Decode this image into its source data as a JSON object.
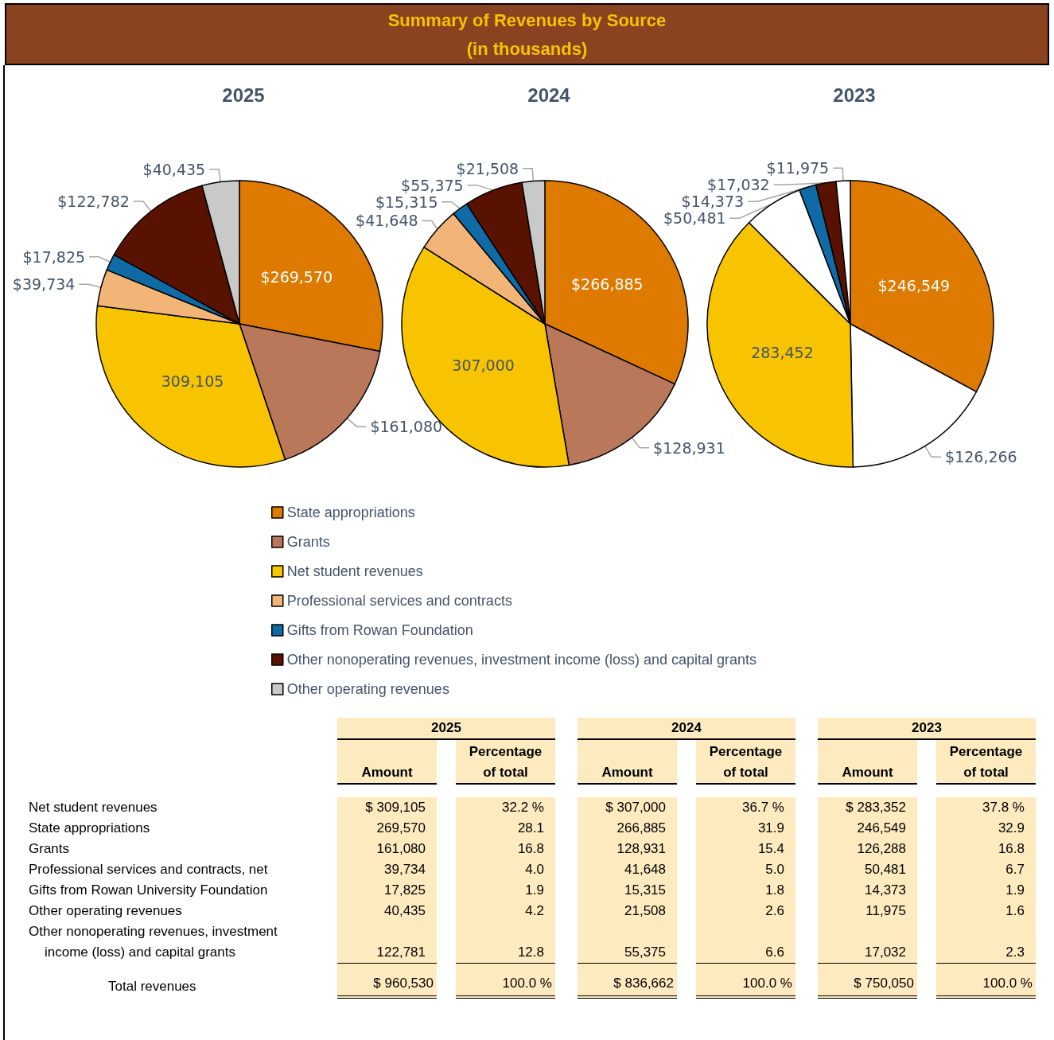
{
  "chart_data": [
    {
      "type": "other",
      "title": "Summary of Revenues by Source",
      "subtitle": "(in thousands)"
    },
    {
      "type": "pie",
      "legend": "bottom",
      "categories": [
        "State appropriations",
        "Grants",
        "Net student revenues",
        "Professional services and contracts",
        "Gifts from Rowan Foundation",
        "Other nonoperating revenues, investment income (loss) and capital grants",
        "Other operating revenues"
      ],
      "series": [
        {
          "name": "2025",
          "values": [
            269570,
            161080,
            309105,
            39734,
            17825,
            122782,
            40435
          ],
          "colors": [
            "#df7a00",
            "#b9785a",
            "#f8c400",
            "#f3b577",
            "#0f6aa5",
            "#5a1200",
            "#c9c9c9"
          ],
          "value_labels": [
            "$269,570",
            "$161,080",
            "309,105",
            "$39,734",
            "$17,825",
            "$122,782",
            "$40,435"
          ]
        },
        {
          "name": "2024",
          "values": [
            266885,
            128931,
            307000,
            41648,
            15315,
            55375,
            21508
          ],
          "colors": [
            "#df7a00",
            "#b9785a",
            "#f8c400",
            "#f3b577",
            "#0f6aa5",
            "#5a1200",
            "#c9c9c9"
          ],
          "value_labels": [
            "$266,885",
            "$128,931",
            "307,000",
            "$41,648",
            "$15,315",
            "$55,375",
            "$21,508"
          ]
        },
        {
          "name": "2023",
          "values": [
            246549,
            126266,
            283452,
            50481,
            14373,
            17032,
            11975
          ],
          "colors": [
            "#df7a00",
            "#ffffff",
            "#f8c400",
            "#ffffff",
            "#0f6aa5",
            "#5a1200",
            "#ffffff"
          ],
          "value_labels": [
            "$246,549",
            "$126,266",
            "283,452",
            "$50,481",
            "$14,373",
            "$17,032",
            "$11,975"
          ]
        }
      ]
    },
    {
      "type": "other",
      "annotations": [
        "2025",
        "2024",
        "2023"
      ],
      "categories": [
        "Amount",
        "Percentage of total",
        "Amount",
        "Percentage of total",
        "Amount",
        "Percentage of total"
      ],
      "y_categories": [
        "Net student revenues",
        "State appropriations",
        "Grants",
        "Professional services and contracts, net",
        "Gifts from Rowan University Foundation",
        "Other operating revenues",
        "Other nonoperating revenues, investment income (loss) and capital grants",
        "Total revenues"
      ],
      "cell_labels": [
        [
          "$ 309,105",
          "32.2 %",
          "$ 307,000",
          "36.7 %",
          "$ 283,352",
          "37.8 %"
        ],
        [
          "269,570",
          "28.1",
          "266,885",
          "31.9",
          "246,549",
          "32.9"
        ],
        [
          "161,080",
          "16.8",
          "128,931",
          "15.4",
          "126,288",
          "16.8"
        ],
        [
          "39,734",
          "4.0",
          "41,648",
          "5.0",
          "50,481",
          "6.7"
        ],
        [
          "17,825",
          "1.9",
          "15,315",
          "1.8",
          "14,373",
          "1.9"
        ],
        [
          "40,435",
          "4.2",
          "21,508",
          "2.6",
          "11,975",
          "1.6"
        ],
        [
          "122,781",
          "12.8",
          "55,375",
          "6.6",
          "17,032",
          "2.3"
        ],
        [
          "$ 960,530",
          "100.0 %",
          "$ 836,662",
          "100.0 %",
          "$ 750,050",
          "100.0 %"
        ]
      ]
    }
  ]
}
